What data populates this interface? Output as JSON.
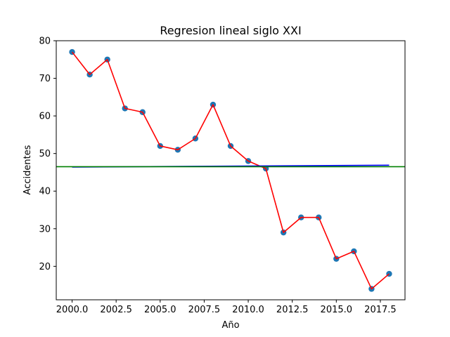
{
  "chart_data": {
    "type": "scatter",
    "title": "Regresion lineal siglo XXI",
    "xlabel": "Año",
    "ylabel": "Accidentes",
    "xlim": [
      1999.1,
      2018.9
    ],
    "ylim": [
      11.1,
      80
    ],
    "x_ticks": [
      2000.0,
      2002.5,
      2005.0,
      2007.5,
      2010.0,
      2012.5,
      2015.0,
      2017.5
    ],
    "x_tick_labels": [
      "2000.0",
      "2002.5",
      "2005.0",
      "2007.5",
      "2010.0",
      "2012.5",
      "2015.0",
      "2017.5"
    ],
    "y_ticks": [
      20,
      30,
      40,
      50,
      60,
      70,
      80
    ],
    "y_tick_labels": [
      "20",
      "30",
      "40",
      "50",
      "60",
      "70",
      "80"
    ],
    "grid": false,
    "series": [
      {
        "type": "scatter",
        "color": "#1f77b4",
        "x": [
          2000,
          2001,
          2002,
          2003,
          2004,
          2005,
          2006,
          2007,
          2008,
          2009,
          2010,
          2011,
          2012,
          2013,
          2014,
          2015,
          2016,
          2017,
          2018
        ],
        "y": [
          77,
          71,
          75,
          62,
          61,
          52,
          51,
          54,
          63,
          52,
          48,
          46,
          29,
          33,
          33,
          22,
          24,
          14,
          18
        ]
      },
      {
        "type": "line",
        "color": "#ff0000",
        "x": [
          2000,
          2001,
          2002,
          2003,
          2004,
          2005,
          2006,
          2007,
          2008,
          2009,
          2010,
          2011,
          2012,
          2013,
          2014,
          2015,
          2016,
          2017,
          2018
        ],
        "y": [
          77,
          71,
          75,
          62,
          61,
          52,
          51,
          54,
          63,
          52,
          48,
          46,
          29,
          33,
          33,
          22,
          24,
          14,
          18
        ]
      },
      {
        "type": "line",
        "color": "#0000ff",
        "x": [
          2000,
          2018
        ],
        "y": [
          46.4,
          46.9
        ]
      },
      {
        "type": "hline",
        "color": "#008000",
        "y": 46.5
      }
    ]
  }
}
